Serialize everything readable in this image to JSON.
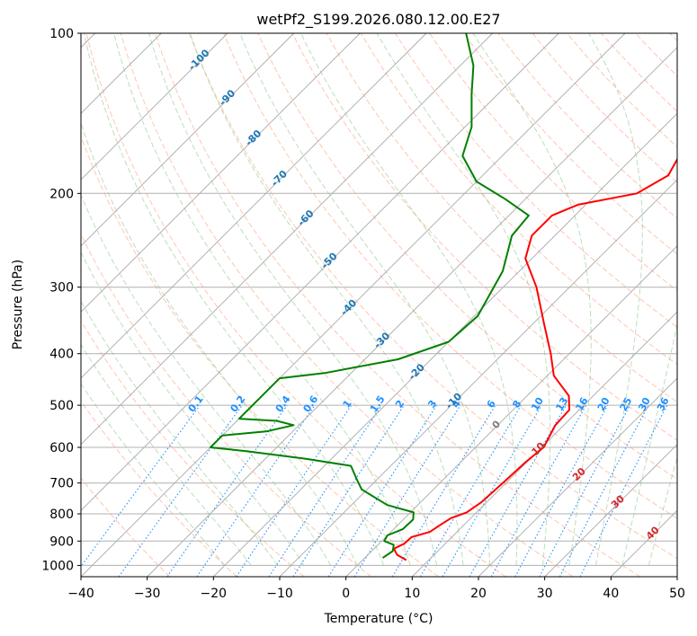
{
  "chart_data": {
    "type": "line",
    "diagram": "skew-t log-p",
    "title": "wetPf2_S199.2026.080.12.00.E27",
    "xlabel": "Temperature (°C)",
    "ylabel": "Pressure (hPa)",
    "xlim": [
      -40,
      50
    ],
    "ylim": [
      1050,
      100
    ],
    "y_scale": "log",
    "x_ticks": [
      -40,
      -30,
      -20,
      -10,
      0,
      10,
      20,
      30,
      40,
      50
    ],
    "x_tick_labels": [
      "−40",
      "−30",
      "−20",
      "−10",
      "0",
      "10",
      "20",
      "30",
      "40",
      "50"
    ],
    "y_ticks": [
      1000,
      900,
      800,
      700,
      600,
      500,
      400,
      300,
      200,
      100
    ],
    "y_tick_labels": [
      "1000",
      "900",
      "800",
      "700",
      "600",
      "500",
      "400",
      "300",
      "200",
      "100"
    ],
    "grid": true,
    "series": [
      {
        "role": "temperature",
        "color": "#ff0000",
        "points": [
          {
            "p": 977,
            "t": 6.6
          },
          {
            "p": 955,
            "t": 4.4
          },
          {
            "p": 930,
            "t": 3.0
          },
          {
            "p": 910,
            "t": 3.8
          },
          {
            "p": 885,
            "t": 3.9
          },
          {
            "p": 865,
            "t": 5.9
          },
          {
            "p": 840,
            "t": 6.4
          },
          {
            "p": 815,
            "t": 7.0
          },
          {
            "p": 795,
            "t": 8.5
          },
          {
            "p": 760,
            "t": 9.2
          },
          {
            "p": 700,
            "t": 9.5
          },
          {
            "p": 640,
            "t": 9.8
          },
          {
            "p": 600,
            "t": 10.3
          },
          {
            "p": 545,
            "t": 8.7
          },
          {
            "p": 510,
            "t": 8.5
          },
          {
            "p": 480,
            "t": 6.3
          },
          {
            "p": 440,
            "t": 1.0
          },
          {
            "p": 400,
            "t": -2.8
          },
          {
            "p": 350,
            "t": -8.5
          },
          {
            "p": 300,
            "t": -15.0
          },
          {
            "p": 265,
            "t": -21.0
          },
          {
            "p": 240,
            "t": -23.5
          },
          {
            "p": 220,
            "t": -23.5
          },
          {
            "p": 210,
            "t": -21.2
          },
          {
            "p": 200,
            "t": -14.0
          },
          {
            "p": 185,
            "t": -12.0
          },
          {
            "p": 170,
            "t": -13.3
          },
          {
            "p": 150,
            "t": -17.0
          },
          {
            "p": 125,
            "t": -21.0
          },
          {
            "p": 110,
            "t": -22.0
          },
          {
            "p": 100,
            "t": -23.0
          }
        ]
      },
      {
        "role": "dewpoint",
        "color": "#008000",
        "points": [
          {
            "p": 968,
            "t": 2.7
          },
          {
            "p": 940,
            "t": 3.2
          },
          {
            "p": 915,
            "t": 2.4
          },
          {
            "p": 900,
            "t": 0.4
          },
          {
            "p": 878,
            "t": 0.0
          },
          {
            "p": 855,
            "t": 1.4
          },
          {
            "p": 820,
            "t": 1.5
          },
          {
            "p": 795,
            "t": 0.5
          },
          {
            "p": 770,
            "t": -4.6
          },
          {
            "p": 720,
            "t": -10.8
          },
          {
            "p": 690,
            "t": -13.0
          },
          {
            "p": 650,
            "t": -16.0
          },
          {
            "p": 630,
            "t": -24.0
          },
          {
            "p": 610,
            "t": -34.0
          },
          {
            "p": 600,
            "t": -40.0
          },
          {
            "p": 570,
            "t": -40.0
          },
          {
            "p": 560,
            "t": -34.0
          },
          {
            "p": 545,
            "t": -30.8
          },
          {
            "p": 535,
            "t": -34.0
          },
          {
            "p": 530,
            "t": -40.0
          },
          {
            "p": 445,
            "t": -40.0
          },
          {
            "p": 435,
            "t": -34.0
          },
          {
            "p": 410,
            "t": -25.0
          },
          {
            "p": 380,
            "t": -20.0
          },
          {
            "p": 340,
            "t": -19.5
          },
          {
            "p": 280,
            "t": -22.5
          },
          {
            "p": 240,
            "t": -26.5
          },
          {
            "p": 220,
            "t": -27.0
          },
          {
            "p": 205,
            "t": -33.0
          },
          {
            "p": 190,
            "t": -40.0
          },
          {
            "p": 170,
            "t": -46.0
          },
          {
            "p": 150,
            "t": -49.0
          },
          {
            "p": 130,
            "t": -54.0
          },
          {
            "p": 115,
            "t": -58.0
          },
          {
            "p": 100,
            "t": -64.0
          }
        ]
      }
    ],
    "isotherm_labels": [
      "-100",
      "-90",
      "-80",
      "-70",
      "-60",
      "-50",
      "-40",
      "-30",
      "-20",
      "-10",
      "0",
      "10",
      "20",
      "30",
      "40"
    ],
    "mixing_ratio_labels": [
      "0.1",
      "0.2",
      "0.4",
      "0.6",
      "1",
      "1.5",
      "2",
      "3",
      "4",
      "6",
      "8",
      "10",
      "13",
      "16",
      "20",
      "25",
      "30",
      "36"
    ],
    "colors": {
      "temperature": "#ff0000",
      "dewpoint": "#008000",
      "isotherm_label_cold": "#1f77b4",
      "isotherm_label_warm": "#d62728",
      "isotherm_label_zero": "#808080",
      "mixing_ratio": "#1e90ff",
      "dry_adiabat": "#ffa07a",
      "moist_adiabat": "#90c890",
      "grid": "#b0b0b0"
    }
  }
}
